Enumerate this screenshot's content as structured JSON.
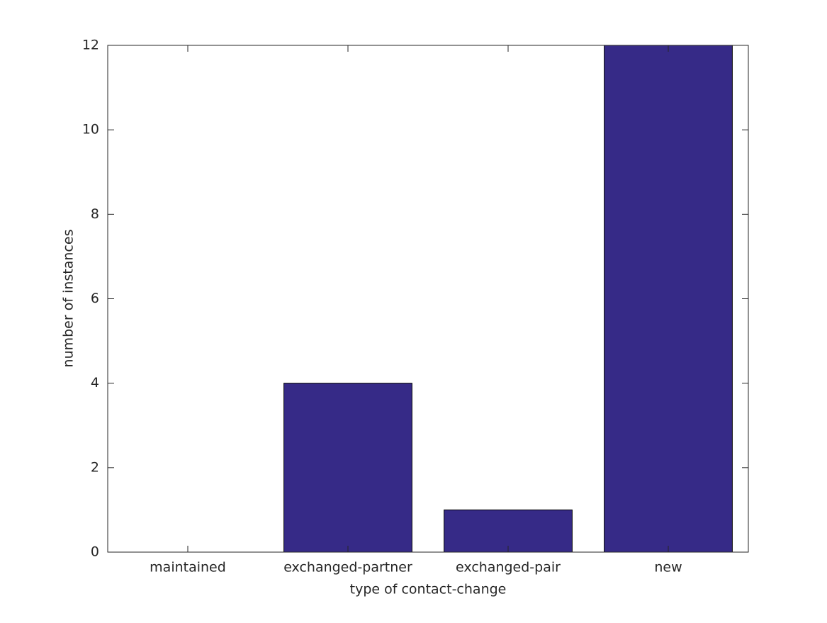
{
  "chart_data": {
    "type": "bar",
    "categories": [
      "maintained",
      "exchanged-partner",
      "exchanged-pair",
      "new"
    ],
    "values": [
      0,
      4,
      1,
      12
    ],
    "color": "#362a87",
    "xlabel": "type of contact-change",
    "ylabel": "number of instances",
    "ylim": [
      0,
      12
    ],
    "yticks": [
      0,
      2,
      4,
      6,
      8,
      10,
      12
    ],
    "grid": false
  }
}
